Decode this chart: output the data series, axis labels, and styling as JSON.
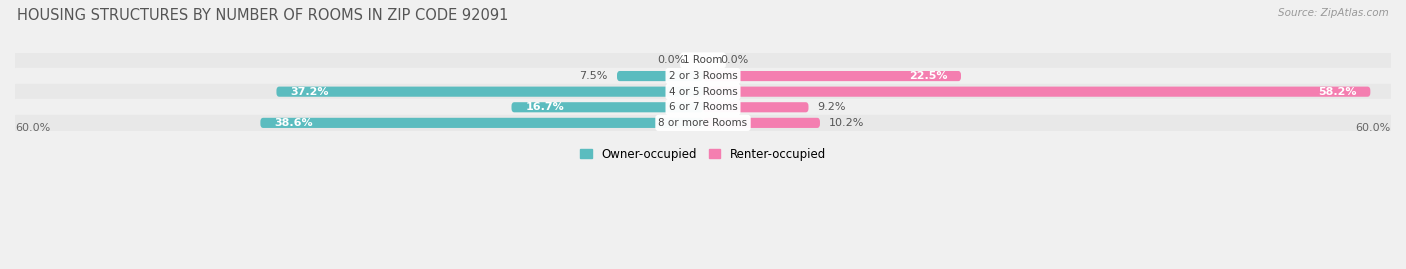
{
  "title": "HOUSING STRUCTURES BY NUMBER OF ROOMS IN ZIP CODE 92091",
  "source": "Source: ZipAtlas.com",
  "categories": [
    "1 Room",
    "2 or 3 Rooms",
    "4 or 5 Rooms",
    "6 or 7 Rooms",
    "8 or more Rooms"
  ],
  "owner_values": [
    0.0,
    7.5,
    37.2,
    16.7,
    38.6
  ],
  "renter_values": [
    0.0,
    22.5,
    58.2,
    9.2,
    10.2
  ],
  "owner_color": "#5bbcbf",
  "renter_color": "#f47eb0",
  "bg_color": "#f0f0f0",
  "row_colors": [
    "#e8e8e8",
    "#f0f0f0"
  ],
  "axis_max": 60.0,
  "title_fontsize": 10.5,
  "label_fontsize": 8,
  "category_fontsize": 7.5,
  "legend_fontsize": 8.5,
  "source_fontsize": 7.5
}
